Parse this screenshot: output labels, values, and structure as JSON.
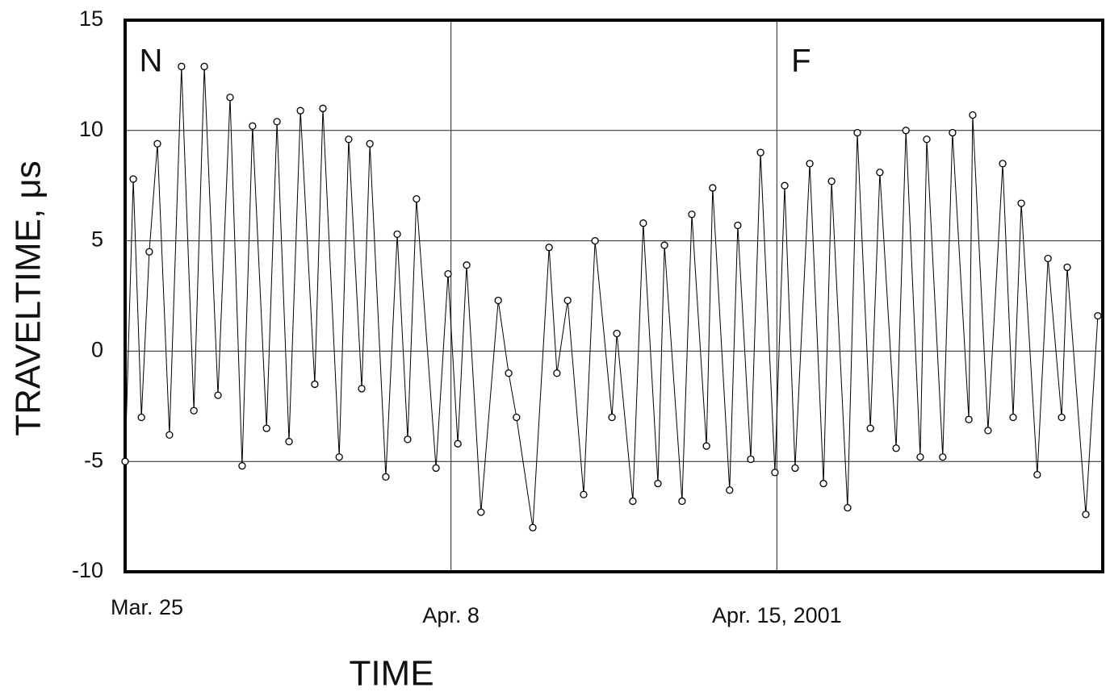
{
  "chart_data": {
    "type": "line",
    "y_label": "TRAVELTIME, μs",
    "x_label": "TIME",
    "annotations": [
      "N",
      "F"
    ],
    "color": "#000000",
    "marker": "open-circle",
    "grid": true,
    "xlim": [
      0,
      3
    ],
    "xticks": [
      {
        "value": 0,
        "label": "Mar. 25"
      },
      {
        "value": 1,
        "label": "Apr. 8"
      },
      {
        "value": 2,
        "label": "Apr. 15, 2001"
      }
    ],
    "ylim": [
      -10,
      15
    ],
    "yticks": [
      15,
      10,
      5,
      0,
      -5,
      -10
    ],
    "x": [
      0,
      0.025,
      0.05,
      0.074,
      0.099,
      0.136,
      0.173,
      0.211,
      0.243,
      0.285,
      0.322,
      0.359,
      0.391,
      0.434,
      0.466,
      0.503,
      0.538,
      0.582,
      0.607,
      0.657,
      0.686,
      0.726,
      0.751,
      0.8,
      0.835,
      0.867,
      0.894,
      0.954,
      0.991,
      1.021,
      1.048,
      1.092,
      1.145,
      1.177,
      1.201,
      1.251,
      1.301,
      1.325,
      1.358,
      1.407,
      1.442,
      1.494,
      1.509,
      1.558,
      1.59,
      1.635,
      1.655,
      1.709,
      1.739,
      1.784,
      1.803,
      1.855,
      1.88,
      1.92,
      1.95,
      1.994,
      2.024,
      2.056,
      2.101,
      2.143,
      2.168,
      2.217,
      2.247,
      2.287,
      2.316,
      2.366,
      2.396,
      2.44,
      2.46,
      2.509,
      2.539,
      2.589,
      2.601,
      2.648,
      2.693,
      2.725,
      2.75,
      2.799,
      2.832,
      2.874,
      2.891,
      2.948,
      2.985
    ],
    "values": [
      -5,
      7.8,
      -3,
      4.5,
      9.4,
      -3.8,
      12.9,
      -2.7,
      12.9,
      -2,
      11.5,
      -5.2,
      10.2,
      -3.5,
      10.4,
      -4.1,
      10.9,
      -1.5,
      11,
      -4.8,
      9.6,
      -1.7,
      9.4,
      -5.7,
      5.3,
      -4,
      6.9,
      -5.3,
      3.5,
      -4.2,
      3.9,
      -7.3,
      2.3,
      -1,
      -3,
      -8,
      4.7,
      -1,
      2.3,
      -6.5,
      5,
      -3,
      0.8,
      -6.8,
      5.8,
      -6,
      4.8,
      -6.8,
      6.2,
      -4.3,
      7.4,
      -6.3,
      5.7,
      -4.9,
      9,
      -5.5,
      7.5,
      -5.3,
      8.5,
      -6,
      7.7,
      -7.1,
      9.9,
      -3.5,
      8.1,
      -4.4,
      10,
      -4.8,
      9.6,
      -4.8,
      9.9,
      -3.1,
      10.7,
      -3.6,
      8.5,
      -3,
      6.7,
      -5.6,
      4.2,
      -3,
      3.8,
      -7.4,
      1.6
    ]
  }
}
